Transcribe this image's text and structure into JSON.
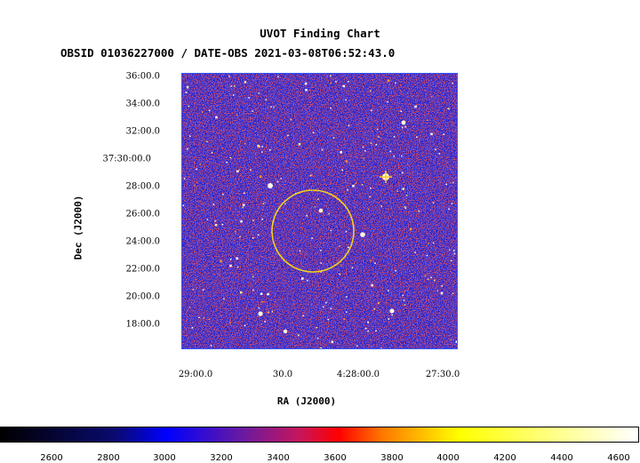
{
  "title": "UVOT Finding Chart",
  "subtitle": "OBSID 01036227000 / DATE-OBS 2021-03-08T06:52:43.0",
  "ylabel": "Dec (J2000)",
  "xlabel": "RA (J2000)",
  "dec_ticks": [
    "36:00.0",
    "34:00.0",
    "32:00.0",
    "37:30:00.0",
    "28:00.0",
    "26:00.0",
    "24:00.0",
    "22:00.0",
    "20:00.0",
    "18:00.0"
  ],
  "ra_ticks": [
    "29:00.0",
    "30.0",
    "4:28:00.0",
    "27:30.0"
  ],
  "colorbar_ticks": [
    "2600",
    "2800",
    "3000",
    "3200",
    "3400",
    "3600",
    "3800",
    "4000",
    "4200",
    "4400",
    "4600"
  ],
  "colors": {
    "background_blue": "#2222cc",
    "noise_red": "#dd1111",
    "circle": "#f2d21a",
    "frame": "#3355ff"
  }
}
